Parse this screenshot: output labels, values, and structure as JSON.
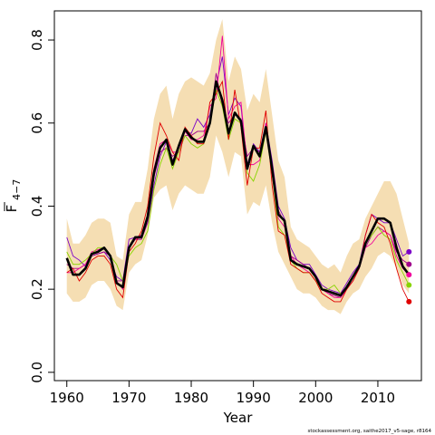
{
  "chart_data": {
    "type": "line",
    "xlabel": "Year",
    "ylabel_main": "F",
    "ylabel_sub": "4−7",
    "xlim": [
      1958,
      2017
    ],
    "ylim": [
      -0.02,
      0.87
    ],
    "xticks": [
      1960,
      1970,
      1980,
      1990,
      2000,
      2010
    ],
    "yticks": [
      0.0,
      0.2,
      0.4,
      0.6,
      0.8
    ],
    "ytick_labels": [
      "0.0",
      "0.2",
      "0.4",
      "0.6",
      "0.8"
    ],
    "xtick_labels": [
      "1960",
      "1970",
      "1980",
      "1990",
      "2000",
      "2010"
    ],
    "footnote": "stockassessment.org, saithe2017_v5-sage, r8164",
    "band_color": "#F5DEB3",
    "years": [
      1960,
      1961,
      1962,
      1963,
      1964,
      1965,
      1966,
      1967,
      1968,
      1969,
      1970,
      1971,
      1972,
      1973,
      1974,
      1975,
      1976,
      1977,
      1978,
      1979,
      1980,
      1981,
      1982,
      1983,
      1984,
      1985,
      1986,
      1987,
      1988,
      1989,
      1990,
      1991,
      1992,
      1993,
      1994,
      1995,
      1996,
      1997,
      1998,
      1999,
      2000,
      2001,
      2002,
      2003,
      2004,
      2005,
      2006,
      2007,
      2008,
      2009,
      2010,
      2011,
      2012,
      2013,
      2014,
      2015
    ],
    "band_lower": [
      0.19,
      0.17,
      0.17,
      0.18,
      0.21,
      0.22,
      0.22,
      0.2,
      0.16,
      0.15,
      0.24,
      0.26,
      0.27,
      0.33,
      0.42,
      0.44,
      0.45,
      0.39,
      0.43,
      0.45,
      0.44,
      0.43,
      0.43,
      0.47,
      0.57,
      0.53,
      0.47,
      0.53,
      0.52,
      0.38,
      0.41,
      0.4,
      0.45,
      0.36,
      0.29,
      0.26,
      0.23,
      0.2,
      0.19,
      0.19,
      0.18,
      0.16,
      0.15,
      0.15,
      0.14,
      0.17,
      0.19,
      0.2,
      0.23,
      0.25,
      0.28,
      0.29,
      0.28,
      0.25,
      0.21,
      0.19
    ],
    "band_upper": [
      0.37,
      0.31,
      0.31,
      0.33,
      0.36,
      0.37,
      0.37,
      0.36,
      0.28,
      0.27,
      0.38,
      0.41,
      0.41,
      0.49,
      0.61,
      0.67,
      0.69,
      0.61,
      0.67,
      0.7,
      0.71,
      0.7,
      0.69,
      0.72,
      0.8,
      0.85,
      0.7,
      0.76,
      0.73,
      0.63,
      0.67,
      0.65,
      0.73,
      0.62,
      0.51,
      0.47,
      0.35,
      0.32,
      0.31,
      0.3,
      0.28,
      0.26,
      0.25,
      0.26,
      0.24,
      0.28,
      0.31,
      0.32,
      0.37,
      0.4,
      0.43,
      0.46,
      0.46,
      0.43,
      0.37,
      0.31
    ],
    "estimate": [
      0.275,
      0.235,
      0.235,
      0.25,
      0.285,
      0.29,
      0.3,
      0.28,
      0.215,
      0.205,
      0.3,
      0.325,
      0.325,
      0.375,
      0.48,
      0.54,
      0.56,
      0.5,
      0.545,
      0.585,
      0.565,
      0.555,
      0.555,
      0.6,
      0.7,
      0.655,
      0.575,
      0.625,
      0.605,
      0.49,
      0.545,
      0.52,
      0.59,
      0.49,
      0.38,
      0.365,
      0.27,
      0.26,
      0.255,
      0.25,
      0.23,
      0.2,
      0.195,
      0.19,
      0.185,
      0.205,
      0.23,
      0.255,
      0.31,
      0.34,
      0.37,
      0.37,
      0.36,
      0.3,
      0.255,
      0.235
    ],
    "series": [
      {
        "color": "#7B00C8",
        "values": [
          0.325,
          0.28,
          0.27,
          0.255,
          0.28,
          0.285,
          0.29,
          0.27,
          0.23,
          0.22,
          0.32,
          0.325,
          0.33,
          0.36,
          0.45,
          0.52,
          0.555,
          0.51,
          0.54,
          0.58,
          0.575,
          0.61,
          0.59,
          0.62,
          0.69,
          0.76,
          0.62,
          0.66,
          0.64,
          0.5,
          0.55,
          0.53,
          0.6,
          0.51,
          0.4,
          0.37,
          0.3,
          0.27,
          0.26,
          0.26,
          0.235,
          0.21,
          0.2,
          0.195,
          0.19,
          0.215,
          0.24,
          0.26,
          0.33,
          0.38,
          0.37,
          0.36,
          0.36,
          0.32,
          0.28,
          0.29
        ]
      },
      {
        "color": "#A0008C",
        "values": [
          0.26,
          0.25,
          0.25,
          0.26,
          0.28,
          0.285,
          0.29,
          0.28,
          0.22,
          0.22,
          0.3,
          0.32,
          0.32,
          0.36,
          0.47,
          0.53,
          0.54,
          0.52,
          0.53,
          0.57,
          0.57,
          0.58,
          0.58,
          0.6,
          0.72,
          0.64,
          0.6,
          0.62,
          0.61,
          0.52,
          0.54,
          0.53,
          0.58,
          0.5,
          0.39,
          0.36,
          0.28,
          0.27,
          0.26,
          0.25,
          0.23,
          0.2,
          0.19,
          0.185,
          0.18,
          0.2,
          0.22,
          0.25,
          0.3,
          0.33,
          0.35,
          0.34,
          0.33,
          0.29,
          0.27,
          0.26
        ]
      },
      {
        "color": "#F0009C",
        "values": [
          0.24,
          0.24,
          0.25,
          0.26,
          0.29,
          0.295,
          0.3,
          0.28,
          0.22,
          0.2,
          0.3,
          0.32,
          0.33,
          0.37,
          0.49,
          0.55,
          0.56,
          0.53,
          0.53,
          0.58,
          0.56,
          0.56,
          0.57,
          0.64,
          0.66,
          0.81,
          0.61,
          0.64,
          0.65,
          0.5,
          0.5,
          0.51,
          0.6,
          0.48,
          0.37,
          0.35,
          0.28,
          0.26,
          0.25,
          0.24,
          0.22,
          0.2,
          0.19,
          0.18,
          0.18,
          0.2,
          0.23,
          0.25,
          0.3,
          0.31,
          0.33,
          0.34,
          0.33,
          0.28,
          0.25,
          0.235
        ]
      },
      {
        "color": "#88D400",
        "values": [
          0.29,
          0.26,
          0.26,
          0.27,
          0.285,
          0.3,
          0.3,
          0.28,
          0.26,
          0.22,
          0.28,
          0.3,
          0.31,
          0.34,
          0.44,
          0.5,
          0.54,
          0.49,
          0.53,
          0.57,
          0.55,
          0.54,
          0.55,
          0.6,
          0.68,
          0.64,
          0.56,
          0.61,
          0.6,
          0.48,
          0.46,
          0.5,
          0.58,
          0.48,
          0.35,
          0.33,
          0.27,
          0.25,
          0.24,
          0.24,
          0.22,
          0.2,
          0.2,
          0.21,
          0.19,
          0.2,
          0.23,
          0.25,
          0.31,
          0.33,
          0.35,
          0.33,
          0.32,
          0.27,
          0.24,
          0.21
        ]
      },
      {
        "color": "#E00000",
        "values": [
          0.24,
          0.25,
          0.22,
          0.24,
          0.27,
          0.28,
          0.28,
          0.26,
          0.2,
          0.18,
          0.29,
          0.31,
          0.34,
          0.4,
          0.52,
          0.6,
          0.57,
          0.53,
          0.51,
          0.59,
          0.57,
          0.55,
          0.55,
          0.65,
          0.67,
          0.7,
          0.56,
          0.68,
          0.59,
          0.45,
          0.54,
          0.54,
          0.63,
          0.45,
          0.34,
          0.33,
          0.26,
          0.25,
          0.24,
          0.24,
          0.22,
          0.19,
          0.18,
          0.17,
          0.17,
          0.2,
          0.22,
          0.25,
          0.33,
          0.38,
          0.36,
          0.35,
          0.31,
          0.25,
          0.2,
          0.17
        ]
      }
    ],
    "endpoint_dots": [
      {
        "color": "#7B00C8",
        "value": 0.29
      },
      {
        "color": "#A0008C",
        "value": 0.26
      },
      {
        "color": "#F0009C",
        "value": 0.235
      },
      {
        "color": "#88D400",
        "value": 0.21
      },
      {
        "color": "#E00000",
        "value": 0.17
      }
    ]
  }
}
